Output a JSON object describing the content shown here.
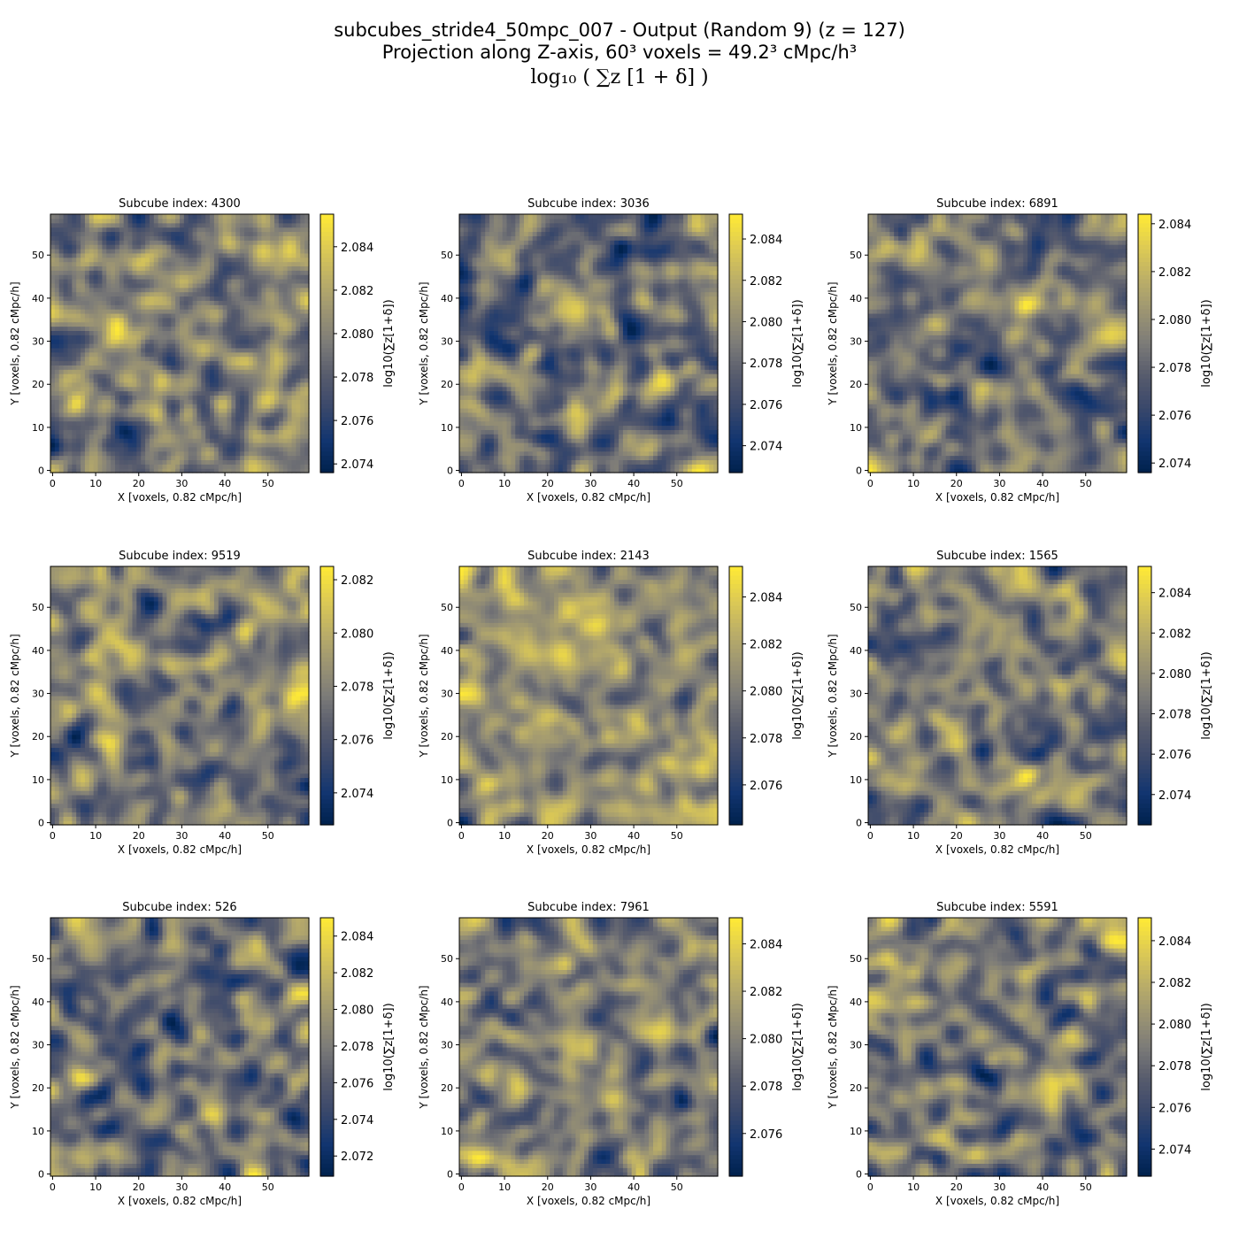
{
  "suptitle": {
    "line1": "subcubes_stride4_50mpc_007 - Output (Random 9) (z = 127)",
    "line2": "Projection along Z-axis, 60³ voxels = 49.2³ cMpc/h³",
    "line3": "log₁₀ ( ∑z [1 + δ] )"
  },
  "colormap": "cividis",
  "chart_data": [
    {
      "type": "heatmap",
      "title": "Subcube index: 4300",
      "xlabel": "X [voxels, 0.82 cMpc/h]",
      "ylabel": "Y [voxels, 0.82 cMpc/h]",
      "colorbar_label": "log10(∑z[1+δ])",
      "x_ticks": [
        0,
        10,
        20,
        30,
        40,
        50
      ],
      "y_ticks": [
        0,
        10,
        20,
        30,
        40,
        50
      ],
      "xlim": [
        0,
        59
      ],
      "ylim": [
        0,
        59
      ],
      "clim": [
        2.0736,
        2.0855
      ],
      "colorbar_ticks": [
        "2.074",
        "2.076",
        "2.078",
        "2.080",
        "2.082",
        "2.084"
      ],
      "grid_size": [
        60,
        60
      ]
    },
    {
      "type": "heatmap",
      "title": "Subcube index: 3036",
      "xlabel": "X [voxels, 0.82 cMpc/h]",
      "ylabel": "Y [voxels, 0.82 cMpc/h]",
      "colorbar_label": "log10(∑z[1+δ])",
      "x_ticks": [
        0,
        10,
        20,
        30,
        40,
        50
      ],
      "y_ticks": [
        0,
        10,
        20,
        30,
        40,
        50
      ],
      "xlim": [
        0,
        59
      ],
      "ylim": [
        0,
        59
      ],
      "clim": [
        2.0727,
        2.0852
      ],
      "colorbar_ticks": [
        "2.074",
        "2.076",
        "2.078",
        "2.080",
        "2.082",
        "2.084"
      ],
      "grid_size": [
        60,
        60
      ]
    },
    {
      "type": "heatmap",
      "title": "Subcube index: 6891",
      "xlabel": "X [voxels, 0.82 cMpc/h]",
      "ylabel": "Y [voxels, 0.82 cMpc/h]",
      "colorbar_label": "log10(∑z[1+δ])",
      "x_ticks": [
        0,
        10,
        20,
        30,
        40,
        50
      ],
      "y_ticks": [
        0,
        10,
        20,
        30,
        40,
        50
      ],
      "xlim": [
        0,
        59
      ],
      "ylim": [
        0,
        59
      ],
      "clim": [
        2.0736,
        2.0844
      ],
      "colorbar_ticks": [
        "2.074",
        "2.076",
        "2.078",
        "2.080",
        "2.082",
        "2.084"
      ],
      "grid_size": [
        60,
        60
      ]
    },
    {
      "type": "heatmap",
      "title": "Subcube index: 9519",
      "xlabel": "X [voxels, 0.82 cMpc/h]",
      "ylabel": "Y [voxels, 0.82 cMpc/h]",
      "colorbar_label": "log10(∑z[1+δ])",
      "x_ticks": [
        0,
        10,
        20,
        30,
        40,
        50
      ],
      "y_ticks": [
        0,
        10,
        20,
        30,
        40,
        50
      ],
      "xlim": [
        0,
        59
      ],
      "ylim": [
        0,
        59
      ],
      "clim": [
        2.0728,
        2.0825
      ],
      "colorbar_ticks": [
        "2.074",
        "2.076",
        "2.078",
        "2.080",
        "2.082"
      ],
      "grid_size": [
        60,
        60
      ]
    },
    {
      "type": "heatmap",
      "title": "Subcube index: 2143",
      "xlabel": "X [voxels, 0.82 cMpc/h]",
      "ylabel": "Y [voxels, 0.82 cMpc/h]",
      "colorbar_label": "log10(∑z[1+δ])",
      "x_ticks": [
        0,
        10,
        20,
        30,
        40,
        50
      ],
      "y_ticks": [
        0,
        10,
        20,
        30,
        40,
        50
      ],
      "xlim": [
        0,
        59
      ],
      "ylim": [
        0,
        59
      ],
      "clim": [
        2.0743,
        2.0853
      ],
      "colorbar_ticks": [
        "2.076",
        "2.078",
        "2.080",
        "2.082",
        "2.084"
      ],
      "grid_size": [
        60,
        60
      ]
    },
    {
      "type": "heatmap",
      "title": "Subcube index: 1565",
      "xlabel": "X [voxels, 0.82 cMpc/h]",
      "ylabel": "Y [voxels, 0.82 cMpc/h]",
      "colorbar_label": "log10(∑z[1+δ])",
      "x_ticks": [
        0,
        10,
        20,
        30,
        40,
        50
      ],
      "y_ticks": [
        0,
        10,
        20,
        30,
        40,
        50
      ],
      "xlim": [
        0,
        59
      ],
      "ylim": [
        0,
        59
      ],
      "clim": [
        2.0725,
        2.0853
      ],
      "colorbar_ticks": [
        "2.074",
        "2.076",
        "2.078",
        "2.080",
        "2.082",
        "2.084"
      ],
      "grid_size": [
        60,
        60
      ]
    },
    {
      "type": "heatmap",
      "title": "Subcube index: 526",
      "xlabel": "X [voxels, 0.82 cMpc/h]",
      "ylabel": "Y [voxels, 0.82 cMpc/h]",
      "colorbar_label": "log10(∑z[1+δ])",
      "x_ticks": [
        0,
        10,
        20,
        30,
        40,
        50
      ],
      "y_ticks": [
        0,
        10,
        20,
        30,
        40,
        50
      ],
      "xlim": [
        0,
        59
      ],
      "ylim": [
        0,
        59
      ],
      "clim": [
        2.0709,
        2.085
      ],
      "colorbar_ticks": [
        "2.072",
        "2.074",
        "2.076",
        "2.078",
        "2.080",
        "2.082",
        "2.084"
      ],
      "grid_size": [
        60,
        60
      ]
    },
    {
      "type": "heatmap",
      "title": "Subcube index: 7961",
      "xlabel": "X [voxels, 0.82 cMpc/h]",
      "ylabel": "Y [voxels, 0.82 cMpc/h]",
      "colorbar_label": "log10(∑z[1+δ])",
      "x_ticks": [
        0,
        10,
        20,
        30,
        40,
        50
      ],
      "y_ticks": [
        0,
        10,
        20,
        30,
        40,
        50
      ],
      "xlim": [
        0,
        59
      ],
      "ylim": [
        0,
        59
      ],
      "clim": [
        2.0742,
        2.0851
      ],
      "colorbar_ticks": [
        "2.076",
        "2.078",
        "2.080",
        "2.082",
        "2.084"
      ],
      "grid_size": [
        60,
        60
      ]
    },
    {
      "type": "heatmap",
      "title": "Subcube index: 5591",
      "xlabel": "X [voxels, 0.82 cMpc/h]",
      "ylabel": "Y [voxels, 0.82 cMpc/h]",
      "colorbar_label": "log10(∑z[1+δ])",
      "x_ticks": [
        0,
        10,
        20,
        30,
        40,
        50
      ],
      "y_ticks": [
        0,
        10,
        20,
        30,
        40,
        50
      ],
      "xlim": [
        0,
        59
      ],
      "ylim": [
        0,
        59
      ],
      "clim": [
        2.0727,
        2.0851
      ],
      "colorbar_ticks": [
        "2.074",
        "2.076",
        "2.078",
        "2.080",
        "2.082",
        "2.084"
      ],
      "grid_size": [
        60,
        60
      ]
    }
  ]
}
